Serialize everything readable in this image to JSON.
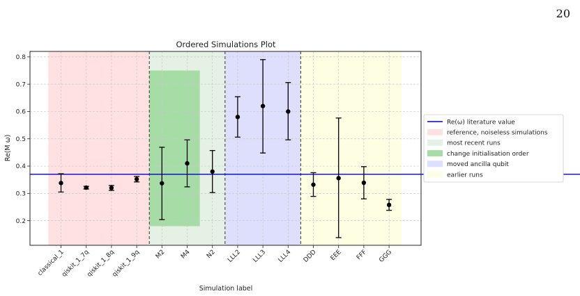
{
  "page_number": "20",
  "chart_data": {
    "type": "scatter",
    "title": "Ordered Simulations Plot",
    "xlabel": "Simulation label",
    "ylabel": "Re(M ω)",
    "ylim": [
      0.11,
      0.82
    ],
    "yticks": [
      0.2,
      0.3,
      0.4,
      0.5,
      0.6,
      0.7,
      0.8
    ],
    "grid": true,
    "categories": [
      "classical_1",
      "qiskit_1_7q",
      "qiskit_1_8q",
      "qiskit_1_9q",
      "M2",
      "M4",
      "N2",
      "LLL2",
      "LLL3",
      "LLL4",
      "DDD",
      "EEE",
      "FFF",
      "GGG"
    ],
    "points": [
      {
        "label": "classical_1",
        "y": 0.338,
        "ymin": 0.305,
        "ymax": 0.372
      },
      {
        "label": "qiskit_1_7q",
        "y": 0.321,
        "ymin": 0.316,
        "ymax": 0.326
      },
      {
        "label": "qiskit_1_8q",
        "y": 0.32,
        "ymin": 0.311,
        "ymax": 0.329
      },
      {
        "label": "qiskit_1_9q",
        "y": 0.352,
        "ymin": 0.342,
        "ymax": 0.362
      },
      {
        "label": "M2",
        "y": 0.337,
        "ymin": 0.204,
        "ymax": 0.469
      },
      {
        "label": "M4",
        "y": 0.41,
        "ymin": 0.324,
        "ymax": 0.496
      },
      {
        "label": "N2",
        "y": 0.38,
        "ymin": 0.303,
        "ymax": 0.457
      },
      {
        "label": "LLL2",
        "y": 0.58,
        "ymin": 0.506,
        "ymax": 0.654
      },
      {
        "label": "LLL3",
        "y": 0.62,
        "ymin": 0.448,
        "ymax": 0.79
      },
      {
        "label": "LLL4",
        "y": 0.6,
        "ymin": 0.496,
        "ymax": 0.706
      },
      {
        "label": "DDD",
        "y": 0.332,
        "ymin": 0.289,
        "ymax": 0.376
      },
      {
        "label": "EEE",
        "y": 0.356,
        "ymin": 0.138,
        "ymax": 0.576
      },
      {
        "label": "FFF",
        "y": 0.339,
        "ymin": 0.28,
        "ymax": 0.398
      },
      {
        "label": "GGG",
        "y": 0.258,
        "ymin": 0.238,
        "ymax": 0.278
      }
    ],
    "reference_line": {
      "label": "Re(ω) literature value",
      "y": 0.37,
      "color": "#0000cc"
    },
    "regions": [
      {
        "label": "reference, noiseless simulations",
        "from": -0.5,
        "to": 3.5,
        "ymin": 0.11,
        "ymax": 0.82,
        "color": "#ffe1e1"
      },
      {
        "label": "most recent runs",
        "from": 3.5,
        "to": 6.5,
        "ymin": 0.11,
        "ymax": 0.82,
        "color": "#e4f1e4"
      },
      {
        "label": "change initialisation order",
        "from": 3.5,
        "to": 5.5,
        "ymin": 0.18,
        "ymax": 0.75,
        "color": "#a6dda6"
      },
      {
        "label": "moved ancilla qubit",
        "from": 6.5,
        "to": 9.5,
        "ymin": 0.11,
        "ymax": 0.82,
        "color": "#dedefd"
      },
      {
        "label": "earlier runs",
        "from": 9.5,
        "to": 13.5,
        "ymin": 0.11,
        "ymax": 0.82,
        "color": "#fefee3"
      }
    ],
    "dividers": [
      3.5,
      6.5,
      9.5
    ],
    "legend_position": "right"
  }
}
